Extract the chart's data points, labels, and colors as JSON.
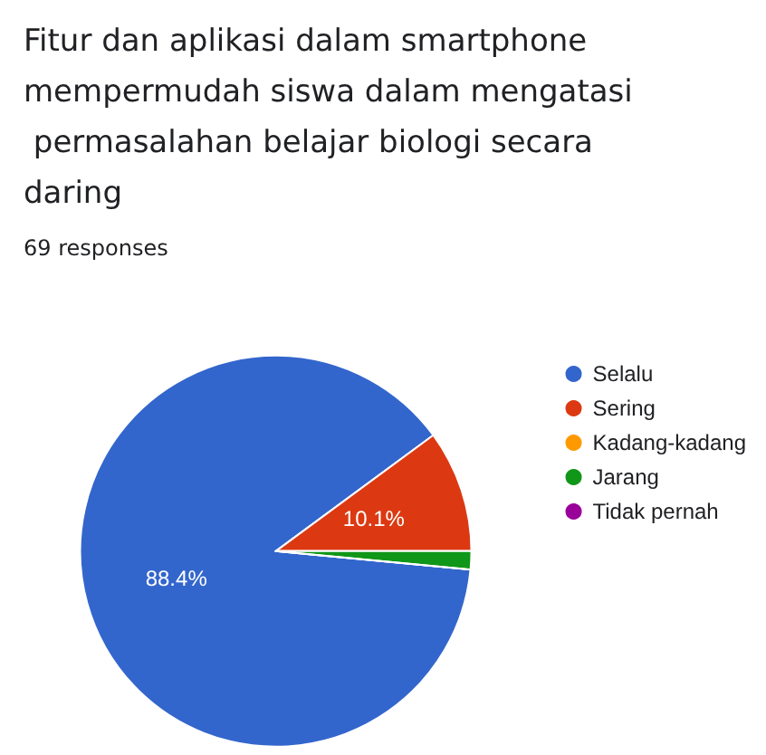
{
  "chart_data": {
    "type": "pie",
    "title": "Fitur dan aplikasi dalam smartphone mempermudah siswa dalam mengatasi permasalahan belajar biologi secara daring",
    "subtitle": "69 responses",
    "categories": [
      "Selalu",
      "Sering",
      "Kadang-kadang",
      "Jarang",
      "Tidak pernah"
    ],
    "values": [
      88.4,
      10.1,
      0,
      1.5,
      0
    ],
    "colors": [
      "#3366cc",
      "#dc3912",
      "#ff9900",
      "#109618",
      "#990099"
    ],
    "value_labels": [
      "88.4%",
      "10.1%",
      null,
      null,
      null
    ],
    "legend": "right"
  }
}
